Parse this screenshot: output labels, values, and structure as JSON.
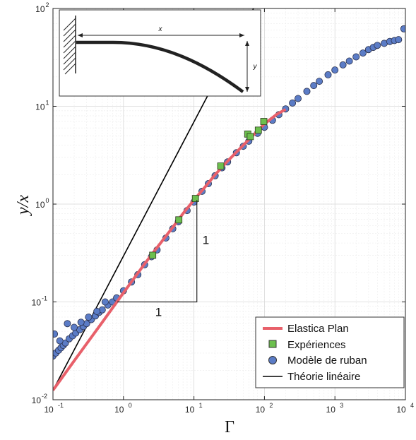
{
  "chart_data": {
    "type": "scatter",
    "xscale": "log",
    "yscale": "log",
    "xlim": [
      0.1,
      10000
    ],
    "ylim": [
      0.01,
      100
    ],
    "xlabel": "Γ",
    "ylabel": "y/x",
    "grid": true,
    "legend_position": "bottom-right",
    "x_ticks": [
      {
        "value": 0.1,
        "base": "10",
        "exp": "-1"
      },
      {
        "value": 1,
        "base": "10",
        "exp": "0"
      },
      {
        "value": 10,
        "base": "10",
        "exp": "1"
      },
      {
        "value": 100,
        "base": "10",
        "exp": "2"
      },
      {
        "value": 1000,
        "base": "10",
        "exp": "3"
      },
      {
        "value": 10000,
        "base": "10",
        "exp": "4"
      }
    ],
    "y_ticks": [
      {
        "value": 0.01,
        "base": "10",
        "exp": "-2"
      },
      {
        "value": 0.1,
        "base": "10",
        "exp": "-1"
      },
      {
        "value": 1,
        "base": "10",
        "exp": "0"
      },
      {
        "value": 10,
        "base": "10",
        "exp": "1"
      },
      {
        "value": 100,
        "base": "10",
        "exp": "2"
      }
    ],
    "series": [
      {
        "name": "Elastica Plan",
        "kind": "line",
        "color": "#e8606a",
        "x": [
          0.1,
          0.2,
          0.5,
          1,
          2,
          3,
          5,
          7,
          10,
          15,
          20,
          30,
          50,
          70,
          100,
          150,
          200
        ],
        "y": [
          0.0125,
          0.025,
          0.062,
          0.124,
          0.245,
          0.36,
          0.58,
          0.8,
          1.1,
          1.55,
          2.0,
          2.75,
          4.0,
          5.1,
          6.6,
          8.3,
          9.3
        ]
      },
      {
        "name": "Expériences",
        "kind": "marker-square",
        "color": "#6cbf4e",
        "x": [
          2.6,
          6.1,
          10.5,
          24,
          58,
          63,
          82,
          98
        ],
        "y": [
          0.3,
          0.69,
          1.14,
          2.45,
          5.2,
          4.9,
          5.7,
          7.0
        ]
      },
      {
        "name": "Modèle de ruban",
        "kind": "marker-circle",
        "color": "#5b7cc6",
        "x": [
          0.1,
          0.11,
          0.12,
          0.13,
          0.14,
          0.15,
          0.17,
          0.19,
          0.21,
          0.24,
          0.27,
          0.3,
          0.35,
          0.4,
          0.45,
          0.5,
          0.6,
          0.7,
          0.8,
          1,
          1.3,
          1.6,
          2,
          2.5,
          3,
          4,
          5,
          6,
          8,
          10,
          13,
          16,
          20,
          25,
          30,
          40,
          50,
          60,
          80,
          100,
          130,
          160,
          200,
          250,
          300,
          400,
          500,
          600,
          800,
          1000,
          1300,
          1600,
          2000,
          2500,
          3000,
          3500,
          4000,
          5000,
          6000,
          7000,
          8000,
          9500,
          0.105,
          0.125,
          0.16,
          0.2,
          0.25,
          0.32,
          0.42,
          0.55
        ],
        "y": [
          0.028,
          0.03,
          0.032,
          0.034,
          0.036,
          0.038,
          0.042,
          0.045,
          0.048,
          0.052,
          0.056,
          0.06,
          0.066,
          0.072,
          0.078,
          0.083,
          0.093,
          0.1,
          0.11,
          0.13,
          0.16,
          0.19,
          0.24,
          0.29,
          0.34,
          0.45,
          0.56,
          0.66,
          0.86,
          1.05,
          1.35,
          1.62,
          1.95,
          2.35,
          2.7,
          3.35,
          3.9,
          4.4,
          5.3,
          6.1,
          7.2,
          8.2,
          9.4,
          10.8,
          12.0,
          14.2,
          16.3,
          18.0,
          21.0,
          23.5,
          26.5,
          29.0,
          32.0,
          35.0,
          38.0,
          40.0,
          42.0,
          44.0,
          46.0,
          47.0,
          48.0,
          62.0,
          0.047,
          0.04,
          0.06,
          0.055,
          0.062,
          0.07,
          0.08,
          0.1
        ]
      },
      {
        "name": "Théorie linéaire",
        "kind": "line",
        "color": "#000000",
        "x": [
          0.1,
          70
        ],
        "y": [
          0.0125,
          100
        ]
      }
    ],
    "annotations": [
      {
        "text": "1",
        "near": "horizontal leg of slope triangle"
      },
      {
        "text": "1",
        "near": "vertical leg of slope triangle"
      }
    ],
    "slope_triangle": {
      "corner_x": 11,
      "x_from": 0.82,
      "y_from": 0.1,
      "y_to": 1.1
    },
    "inset": {
      "description_labels": {
        "x_label": "x",
        "y_label": "y"
      }
    }
  }
}
